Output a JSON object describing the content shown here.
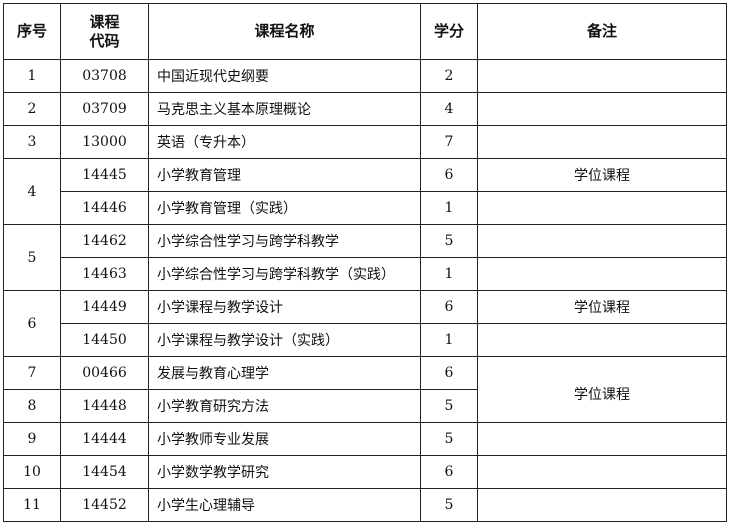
{
  "headers": {
    "no": "序号",
    "code": "课程代码",
    "code_l1": "课程",
    "code_l2": "代码",
    "name": "课程名称",
    "credit": "学分",
    "remark": "备注"
  },
  "rows": [
    {
      "no": "1",
      "code": "03708",
      "name": "中国近现代史纲要",
      "credit": "2",
      "remark": ""
    },
    {
      "no": "2",
      "code": "03709",
      "name": "马克思主义基本原理概论",
      "credit": "4",
      "remark": ""
    },
    {
      "no": "3",
      "code": "13000",
      "name": "英语（专升本）",
      "credit": "7",
      "remark": ""
    },
    {
      "no": "4",
      "code": "14445",
      "name": "小学教育管理",
      "credit": "6",
      "remark": "学位课程"
    },
    {
      "no": "",
      "code": "14446",
      "name": "小学教育管理（实践）",
      "credit": "1",
      "remark": ""
    },
    {
      "no": "5",
      "code": "14462",
      "name": "小学综合性学习与跨学科教学",
      "credit": "5",
      "remark": ""
    },
    {
      "no": "",
      "code": "14463",
      "name": "小学综合性学习与跨学科教学（实践）",
      "credit": "1",
      "remark": ""
    },
    {
      "no": "6",
      "code": "14449",
      "name": "小学课程与教学设计",
      "credit": "6",
      "remark": "学位课程"
    },
    {
      "no": "",
      "code": "14450",
      "name": "小学课程与教学设计（实践）",
      "credit": "1",
      "remark": ""
    },
    {
      "no": "7",
      "code": "00466",
      "name": "发展与教育心理学",
      "credit": "6",
      "remark": "学位课程"
    },
    {
      "no": "8",
      "code": "14448",
      "name": "小学教育研究方法",
      "credit": "5",
      "remark": ""
    },
    {
      "no": "9",
      "code": "14444",
      "name": "小学教师专业发展",
      "credit": "5",
      "remark": ""
    },
    {
      "no": "10",
      "code": "14454",
      "name": "小学数学教学研究",
      "credit": "6",
      "remark": ""
    },
    {
      "no": "11",
      "code": "14452",
      "name": "小学生心理辅导",
      "credit": "5",
      "remark": ""
    }
  ]
}
